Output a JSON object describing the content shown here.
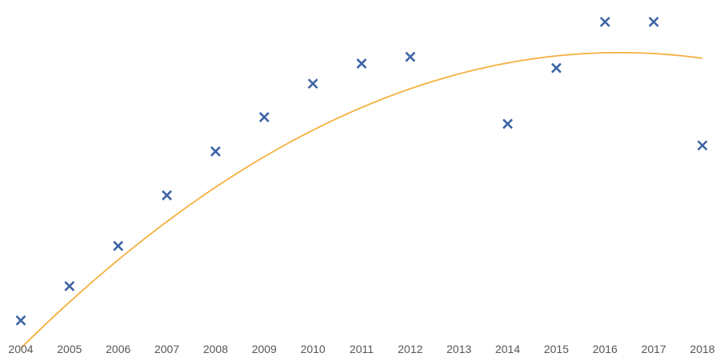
{
  "chart_data": {
    "type": "scatter",
    "title": "",
    "xlabel": "",
    "ylabel": "",
    "x": [
      2004,
      2005,
      2006,
      2007,
      2008,
      2009,
      2010,
      2011,
      2012,
      2014,
      2015,
      2016,
      2017,
      2018
    ],
    "y": [
      1.0,
      5.6,
      11.0,
      17.8,
      23.7,
      28.3,
      32.8,
      35.5,
      36.4,
      27.4,
      34.9,
      41.1,
      41.1,
      24.5
    ],
    "tick_labels": [
      "2004",
      "2005",
      "2006",
      "2007",
      "2008",
      "2009",
      "2010",
      "2011",
      "2012",
      "2013",
      "2014",
      "2015",
      "2016",
      "2017",
      "2018"
    ],
    "xlim": [
      2004,
      2018
    ],
    "ylim": [
      0,
      42
    ],
    "grid": false,
    "legend": "none",
    "marker": "x",
    "trendline": {
      "type": "polynomial",
      "order": 2,
      "coefficients": [
        -0.2624,
        6.9807,
        -9.4553
      ]
    },
    "colors": {
      "marker": "#3d64a5",
      "trendline": "#f5b03e",
      "tick_text": "#555555"
    }
  }
}
